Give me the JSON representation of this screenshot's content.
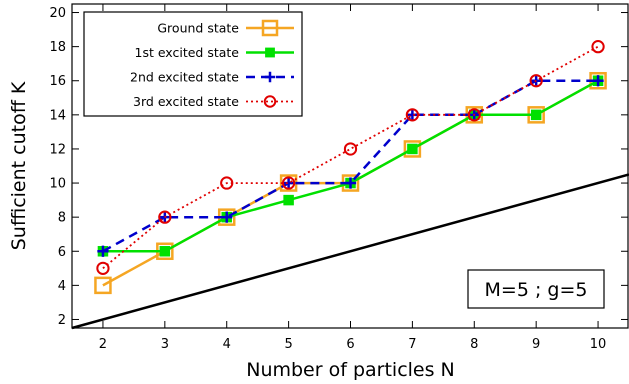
{
  "chart_data": {
    "type": "line",
    "title": "",
    "xlabel": "Number of particles N",
    "ylabel": "Sufficient cutoff K",
    "xlim": [
      1.5,
      10.5
    ],
    "ylim": [
      1.5,
      20.5
    ],
    "xticks": [
      2,
      3,
      4,
      5,
      6,
      7,
      8,
      9,
      10
    ],
    "yticks": [
      2,
      4,
      6,
      8,
      10,
      12,
      14,
      16,
      18,
      20
    ],
    "grid": false,
    "legend_position": "top-left",
    "annotation": "M=5 ; g=5",
    "series": [
      {
        "name": "Ground state",
        "x": [
          2,
          3,
          4,
          5,
          6,
          7,
          8,
          9,
          10
        ],
        "y": [
          4,
          6,
          8,
          10,
          10,
          12,
          14,
          14,
          16
        ],
        "color": "#f5a623",
        "line": "solid",
        "marker": "open-square"
      },
      {
        "name": "1st excited state",
        "x": [
          2,
          3,
          4,
          5,
          6,
          7,
          8,
          9,
          10
        ],
        "y": [
          6,
          6,
          8,
          9,
          10,
          12,
          14,
          14,
          16
        ],
        "color": "#00e000",
        "line": "solid",
        "marker": "filled-square"
      },
      {
        "name": "2nd excited state",
        "x": [
          2,
          3,
          4,
          5,
          6,
          7,
          8,
          9,
          10
        ],
        "y": [
          6,
          8,
          8,
          10,
          10,
          14,
          14,
          16,
          16
        ],
        "color": "#0000cc",
        "line": "dashed",
        "marker": "plus"
      },
      {
        "name": "3rd excited state",
        "x": [
          2,
          3,
          4,
          5,
          6,
          7,
          8,
          9,
          10
        ],
        "y": [
          5,
          8,
          10,
          10,
          12,
          14,
          14,
          16,
          18
        ],
        "color": "#e00000",
        "line": "dotted",
        "marker": "open-circle"
      },
      {
        "name": "",
        "x": [
          1.5,
          10.5
        ],
        "y": [
          1.5,
          10.5
        ],
        "color": "#000000",
        "line": "solid",
        "marker": "none"
      }
    ]
  }
}
